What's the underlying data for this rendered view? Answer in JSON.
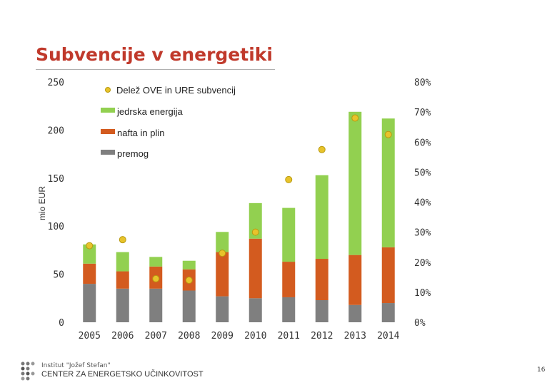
{
  "slide": {
    "title": "Subvencije v energetiki",
    "footer_org": "Institut \"Jožef Stefan\"",
    "footer_center": "CENTER ZA ENERGETSKO UČINKOVITOST",
    "page_number": "16"
  },
  "colors": {
    "title": "#c0392b",
    "jedrska": "#92d050",
    "nafta": "#d35b1f",
    "premog": "#7f7f7f",
    "share_marker": "#e8c32b",
    "share_marker_edge": "#b89a10",
    "axis_text": "#333333"
  },
  "chart_data": {
    "type": "bar",
    "stacked": true,
    "categories": [
      "2005",
      "2006",
      "2007",
      "2008",
      "2009",
      "2010",
      "2011",
      "2012",
      "2013",
      "2014"
    ],
    "series": [
      {
        "name": "premog",
        "color_key": "premog",
        "values": [
          40,
          35,
          35,
          33,
          27,
          25,
          26,
          23,
          18,
          20
        ]
      },
      {
        "name": "nafta in plin",
        "color_key": "nafta",
        "values": [
          21,
          18,
          23,
          22,
          46,
          62,
          37,
          43,
          52,
          58
        ]
      },
      {
        "name": "jedrska energija",
        "color_key": "jedrska",
        "values": [
          20,
          20,
          10,
          9,
          21,
          37,
          56,
          87,
          149,
          134
        ]
      }
    ],
    "secondary_series": {
      "name": "Delež OVE in URE subvencij",
      "type": "scatter",
      "values": [
        0.255,
        0.275,
        0.145,
        0.14,
        0.23,
        0.3,
        0.475,
        0.575,
        0.68,
        0.625
      ]
    },
    "legend": [
      "Delež OVE in URE subvencij",
      "jedrska energija",
      "nafta in plin",
      "premog"
    ],
    "legend_position": "top-left",
    "ylabel": "mio EUR",
    "ylim": [
      0,
      250
    ],
    "yticks": [
      "0",
      "50",
      "100",
      "150",
      "200",
      "250"
    ],
    "y2lim": [
      0,
      0.8
    ],
    "y2ticks": [
      "0%",
      "10%",
      "20%",
      "30%",
      "40%",
      "50%",
      "60%",
      "70%",
      "80%"
    ],
    "grid": true
  }
}
